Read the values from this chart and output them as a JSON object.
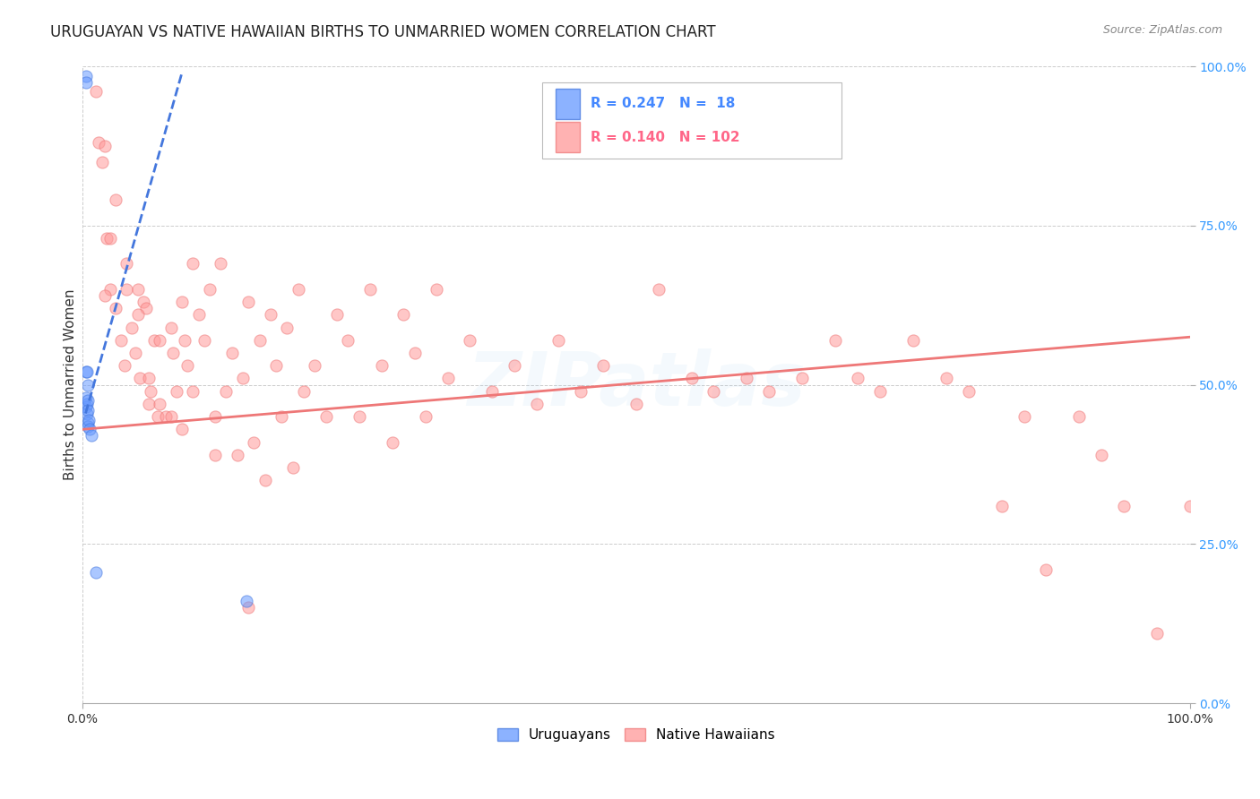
{
  "title": "URUGUAYAN VS NATIVE HAWAIIAN BIRTHS TO UNMARRIED WOMEN CORRELATION CHART",
  "source": "Source: ZipAtlas.com",
  "ylabel": "Births to Unmarried Women",
  "xlim": [
    0.0,
    1.0
  ],
  "ylim": [
    0.0,
    1.0
  ],
  "xtick_pos": [
    0.0,
    1.0
  ],
  "xtick_labels": [
    "0.0%",
    "100.0%"
  ],
  "ytick_pos": [
    0.0,
    0.25,
    0.5,
    0.75,
    1.0
  ],
  "ytick_labels": [
    "0.0%",
    "25.0%",
    "50.0%",
    "75.0%",
    "100.0%"
  ],
  "uruguayan_color": "#6699FF",
  "native_hawaiian_color": "#FF9999",
  "uruguayan_color_dark": "#4477DD",
  "native_hawaiian_color_dark": "#EE7777",
  "watermark": "ZIPatlas",
  "watermark_color": "#99CCEE",
  "legend_r1": "R = 0.247",
  "legend_n1": "N =  18",
  "legend_r2": "R = 0.140",
  "legend_n2": "N = 102",
  "legend_color1": "#4488FF",
  "legend_color2": "#FF6688",
  "uru_x": [
    0.003,
    0.003,
    0.003,
    0.003,
    0.003,
    0.004,
    0.004,
    0.004,
    0.005,
    0.005,
    0.005,
    0.005,
    0.005,
    0.006,
    0.007,
    0.008,
    0.012,
    0.148
  ],
  "uru_y": [
    0.985,
    0.975,
    0.52,
    0.48,
    0.465,
    0.52,
    0.47,
    0.455,
    0.5,
    0.475,
    0.46,
    0.44,
    0.435,
    0.445,
    0.43,
    0.42,
    0.205,
    0.16
  ],
  "haw_x": [
    0.012,
    0.015,
    0.018,
    0.02,
    0.022,
    0.025,
    0.03,
    0.035,
    0.038,
    0.04,
    0.045,
    0.048,
    0.05,
    0.052,
    0.055,
    0.058,
    0.06,
    0.062,
    0.065,
    0.068,
    0.07,
    0.075,
    0.08,
    0.082,
    0.085,
    0.09,
    0.092,
    0.095,
    0.1,
    0.105,
    0.11,
    0.115,
    0.12,
    0.125,
    0.13,
    0.135,
    0.14,
    0.145,
    0.15,
    0.155,
    0.16,
    0.165,
    0.17,
    0.175,
    0.18,
    0.185,
    0.19,
    0.195,
    0.2,
    0.21,
    0.22,
    0.23,
    0.24,
    0.25,
    0.26,
    0.27,
    0.28,
    0.29,
    0.3,
    0.31,
    0.32,
    0.33,
    0.35,
    0.37,
    0.39,
    0.41,
    0.43,
    0.45,
    0.47,
    0.5,
    0.52,
    0.55,
    0.57,
    0.6,
    0.62,
    0.65,
    0.68,
    0.7,
    0.72,
    0.75,
    0.78,
    0.8,
    0.83,
    0.85,
    0.87,
    0.9,
    0.92,
    0.94,
    0.97,
    1.0,
    0.02,
    0.025,
    0.03,
    0.04,
    0.05,
    0.06,
    0.07,
    0.08,
    0.09,
    0.1,
    0.12,
    0.15
  ],
  "haw_y": [
    0.96,
    0.88,
    0.85,
    0.875,
    0.73,
    0.65,
    0.62,
    0.57,
    0.53,
    0.65,
    0.59,
    0.55,
    0.65,
    0.51,
    0.63,
    0.62,
    0.47,
    0.49,
    0.57,
    0.45,
    0.57,
    0.45,
    0.59,
    0.55,
    0.49,
    0.63,
    0.57,
    0.53,
    0.69,
    0.61,
    0.57,
    0.65,
    0.45,
    0.69,
    0.49,
    0.55,
    0.39,
    0.51,
    0.63,
    0.41,
    0.57,
    0.35,
    0.61,
    0.53,
    0.45,
    0.59,
    0.37,
    0.65,
    0.49,
    0.53,
    0.45,
    0.61,
    0.57,
    0.45,
    0.65,
    0.53,
    0.41,
    0.61,
    0.55,
    0.45,
    0.65,
    0.51,
    0.57,
    0.49,
    0.53,
    0.47,
    0.57,
    0.49,
    0.53,
    0.47,
    0.65,
    0.51,
    0.49,
    0.51,
    0.49,
    0.51,
    0.57,
    0.51,
    0.49,
    0.57,
    0.51,
    0.49,
    0.31,
    0.45,
    0.21,
    0.45,
    0.39,
    0.31,
    0.11,
    0.31,
    0.64,
    0.73,
    0.79,
    0.69,
    0.61,
    0.51,
    0.47,
    0.45,
    0.43,
    0.49,
    0.39,
    0.15
  ],
  "uru_trend_x": [
    0.003,
    0.09
  ],
  "uru_trend_y": [
    0.455,
    0.99
  ],
  "haw_trend_x": [
    0.0,
    1.0
  ],
  "haw_trend_y": [
    0.43,
    0.575
  ],
  "background_color": "#FFFFFF",
  "grid_color": "#CCCCCC",
  "title_fontsize": 12,
  "axis_label_fontsize": 11,
  "tick_fontsize": 10,
  "marker_size": 90,
  "marker_alpha": 0.55,
  "watermark_fontsize": 60,
  "watermark_alpha": 0.1
}
